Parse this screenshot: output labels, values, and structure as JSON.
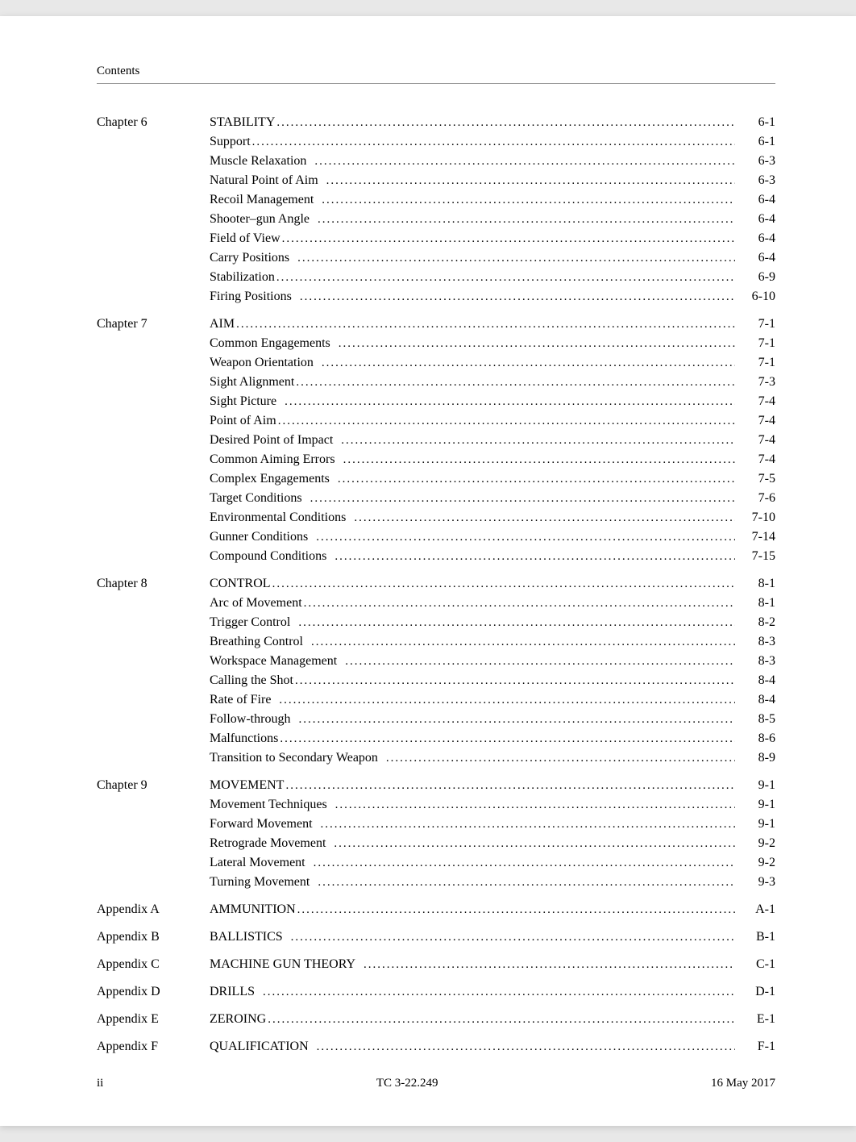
{
  "header": {
    "label": "Contents"
  },
  "footer": {
    "left": "ii",
    "center": "TC 3-22.249",
    "right": "16 May 2017"
  },
  "colors": {
    "page_bg": "#ffffff",
    "text": "#000000",
    "rule": "#999999"
  },
  "typography": {
    "family": "Times New Roman",
    "body_pt": 12,
    "header_pt": 11
  },
  "leader_char": ".",
  "sections": [
    {
      "label": "Chapter 6",
      "items": [
        {
          "title": "STABILITY",
          "page": "6-1"
        },
        {
          "title": "Support",
          "page": "6-1"
        },
        {
          "title": "Muscle Relaxation",
          "page": "6-3",
          "gap": true
        },
        {
          "title": "Natural Point of Aim",
          "page": "6-3",
          "gap": true
        },
        {
          "title": "Recoil Management",
          "page": "6-4",
          "gap": true
        },
        {
          "title": "Shooter–gun Angle",
          "page": "6-4",
          "gap": true
        },
        {
          "title": "Field of View",
          "page": "6-4"
        },
        {
          "title": "Carry Positions",
          "page": "6-4",
          "gap": true
        },
        {
          "title": "Stabilization",
          "page": "6-9"
        },
        {
          "title": "Firing Positions",
          "page": "6-10",
          "gap": true
        }
      ]
    },
    {
      "label": "Chapter 7",
      "items": [
        {
          "title": "AIM",
          "page": "7-1"
        },
        {
          "title": "Common Engagements",
          "page": "7-1",
          "gap": true
        },
        {
          "title": "Weapon Orientation",
          "page": "7-1",
          "gap": true
        },
        {
          "title": "Sight Alignment",
          "page": "7-3"
        },
        {
          "title": "Sight Picture",
          "page": "7-4",
          "gap": true
        },
        {
          "title": "Point of Aim",
          "page": "7-4"
        },
        {
          "title": "Desired Point of Impact",
          "page": "7-4",
          "gap": true
        },
        {
          "title": "Common Aiming Errors",
          "page": "7-4",
          "gap": true
        },
        {
          "title": "Complex Engagements",
          "page": "7-5",
          "gap": true
        },
        {
          "title": "Target Conditions",
          "page": "7-6",
          "gap": true
        },
        {
          "title": "Environmental Conditions",
          "page": "7-10",
          "gap": true
        },
        {
          "title": "Gunner Conditions",
          "page": "7-14",
          "gap": true
        },
        {
          "title": "Compound Conditions",
          "page": "7-15",
          "gap": true
        }
      ]
    },
    {
      "label": "Chapter 8",
      "items": [
        {
          "title": "CONTROL",
          "page": "8-1"
        },
        {
          "title": "Arc of Movement",
          "page": "8-1"
        },
        {
          "title": "Trigger Control",
          "page": "8-2",
          "gap": true
        },
        {
          "title": "Breathing Control",
          "page": "8-3",
          "gap": true
        },
        {
          "title": "Workspace Management",
          "page": "8-3",
          "gap": true
        },
        {
          "title": "Calling the Shot",
          "page": "8-4"
        },
        {
          "title": "Rate of Fire",
          "page": "8-4",
          "gap": true
        },
        {
          "title": "Follow-through",
          "page": "8-5",
          "gap": true
        },
        {
          "title": "Malfunctions",
          "page": "8-6"
        },
        {
          "title": "Transition to Secondary Weapon",
          "page": "8-9",
          "gap": true
        }
      ]
    },
    {
      "label": "Chapter 9",
      "items": [
        {
          "title": "MOVEMENT",
          "page": "9-1"
        },
        {
          "title": "Movement Techniques",
          "page": "9-1",
          "gap": true
        },
        {
          "title": "Forward Movement",
          "page": "9-1",
          "gap": true
        },
        {
          "title": "Retrograde Movement",
          "page": "9-2",
          "gap": true
        },
        {
          "title": "Lateral Movement",
          "page": "9-2",
          "gap": true
        },
        {
          "title": "Turning Movement",
          "page": "9-3",
          "gap": true
        }
      ]
    },
    {
      "label": "Appendix A",
      "items": [
        {
          "title": "AMMUNITION",
          "page": "A-1"
        }
      ]
    },
    {
      "label": "Appendix B",
      "items": [
        {
          "title": "BALLISTICS",
          "page": "B-1",
          "gap": true
        }
      ]
    },
    {
      "label": "Appendix C",
      "items": [
        {
          "title": "MACHINE GUN THEORY",
          "page": "C-1",
          "gap": true
        }
      ]
    },
    {
      "label": "Appendix D",
      "items": [
        {
          "title": "DRILLS",
          "page": "D-1",
          "gap": true
        }
      ]
    },
    {
      "label": "Appendix E",
      "items": [
        {
          "title": "ZEROING",
          "page": "E-1"
        }
      ]
    },
    {
      "label": "Appendix F",
      "items": [
        {
          "title": "QUALIFICATION",
          "page": "F-1",
          "gap": true
        }
      ]
    }
  ]
}
